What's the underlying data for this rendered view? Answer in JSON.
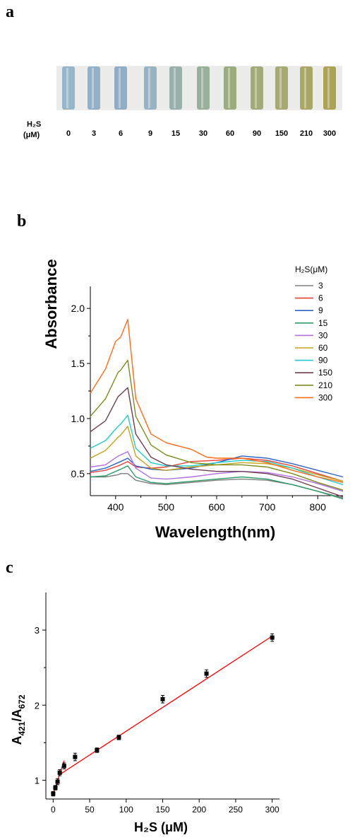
{
  "panels": {
    "a": "a",
    "b": "b",
    "c": "c"
  },
  "chart_data": [
    {
      "type": "photo-strip",
      "row_label_1": "H₂S",
      "row_label_2": "(μM)",
      "concentrations": [
        "0",
        "3",
        "6",
        "9",
        "15",
        "30",
        "60",
        "90",
        "150",
        "210",
        "300"
      ],
      "tube_colors": [
        "#8fb2c8",
        "#8daec4",
        "#8aaac2",
        "#92b0c0",
        "#92ada9",
        "#96ab98",
        "#99a978",
        "#9fa674",
        "#a3a669",
        "#a5a35e",
        "#a89f4c"
      ]
    },
    {
      "type": "line",
      "xlabel": "Wavelength(nm)",
      "ylabel": "Absorbance",
      "xlim": [
        350,
        850
      ],
      "ylim": [
        0.3,
        2.2
      ],
      "xticks": [
        "400",
        "500",
        "600",
        "700",
        "800"
      ],
      "yticks": [
        "0.5",
        "1.0",
        "1.5",
        "2.0"
      ],
      "legend_title": "H₂S(μM)",
      "legend_position": "top-right, outside plot",
      "series": [
        {
          "name": "3",
          "color": "#7f7f7f",
          "values": [
            [
              350,
              0.47
            ],
            [
              380,
              0.47
            ],
            [
              405,
              0.49
            ],
            [
              410,
              0.5
            ],
            [
              424,
              0.5
            ],
            [
              440,
              0.44
            ],
            [
              470,
              0.41
            ],
            [
              500,
              0.4
            ],
            [
              550,
              0.42
            ],
            [
              600,
              0.44
            ],
            [
              650,
              0.45
            ],
            [
              700,
              0.44
            ],
            [
              750,
              0.4
            ],
            [
              800,
              0.34
            ],
            [
              850,
              0.28
            ]
          ]
        },
        {
          "name": "6",
          "color": "#e8403a",
          "values": [
            [
              350,
              0.51
            ],
            [
              380,
              0.53
            ],
            [
              405,
              0.57
            ],
            [
              410,
              0.58
            ],
            [
              424,
              0.61
            ],
            [
              440,
              0.56
            ],
            [
              470,
              0.55
            ],
            [
              500,
              0.56
            ],
            [
              550,
              0.61
            ],
            [
              600,
              0.62
            ],
            [
              650,
              0.64
            ],
            [
              700,
              0.62
            ],
            [
              750,
              0.57
            ],
            [
              800,
              0.5
            ],
            [
              850,
              0.43
            ]
          ]
        },
        {
          "name": "9",
          "color": "#2d63c4",
          "values": [
            [
              350,
              0.52
            ],
            [
              380,
              0.55
            ],
            [
              405,
              0.6
            ],
            [
              410,
              0.61
            ],
            [
              424,
              0.64
            ],
            [
              440,
              0.57
            ],
            [
              470,
              0.54
            ],
            [
              500,
              0.53
            ],
            [
              550,
              0.55
            ],
            [
              600,
              0.6
            ],
            [
              650,
              0.66
            ],
            [
              700,
              0.64
            ],
            [
              750,
              0.59
            ],
            [
              800,
              0.53
            ],
            [
              850,
              0.47
            ]
          ]
        },
        {
          "name": "15",
          "color": "#2e9b6a",
          "values": [
            [
              350,
              0.47
            ],
            [
              380,
              0.48
            ],
            [
              405,
              0.53
            ],
            [
              410,
              0.54
            ],
            [
              424,
              0.57
            ],
            [
              440,
              0.47
            ],
            [
              470,
              0.42
            ],
            [
              500,
              0.41
            ],
            [
              550,
              0.43
            ],
            [
              600,
              0.45
            ],
            [
              650,
              0.47
            ],
            [
              700,
              0.45
            ],
            [
              750,
              0.4
            ],
            [
              800,
              0.34
            ],
            [
              850,
              0.27
            ]
          ]
        },
        {
          "name": "30",
          "color": "#b26fe0",
          "values": [
            [
              350,
              0.56
            ],
            [
              380,
              0.58
            ],
            [
              405,
              0.66
            ],
            [
              410,
              0.67
            ],
            [
              424,
              0.7
            ],
            [
              440,
              0.55
            ],
            [
              470,
              0.46
            ],
            [
              500,
              0.45
            ],
            [
              550,
              0.47
            ],
            [
              600,
              0.5
            ],
            [
              650,
              0.52
            ],
            [
              700,
              0.51
            ],
            [
              750,
              0.47
            ],
            [
              800,
              0.41
            ],
            [
              850,
              0.34
            ]
          ]
        },
        {
          "name": "60",
          "color": "#c4a21c",
          "values": [
            [
              350,
              0.64
            ],
            [
              380,
              0.71
            ],
            [
              405,
              0.83
            ],
            [
              410,
              0.85
            ],
            [
              424,
              0.93
            ],
            [
              440,
              0.66
            ],
            [
              470,
              0.55
            ],
            [
              500,
              0.53
            ],
            [
              550,
              0.56
            ],
            [
              600,
              0.58
            ],
            [
              650,
              0.6
            ],
            [
              700,
              0.59
            ],
            [
              750,
              0.55
            ],
            [
              800,
              0.49
            ],
            [
              850,
              0.43
            ]
          ]
        },
        {
          "name": "90",
          "color": "#22cbcb",
          "values": [
            [
              350,
              0.73
            ],
            [
              380,
              0.8
            ],
            [
              405,
              0.93
            ],
            [
              410,
              0.95
            ],
            [
              424,
              1.03
            ],
            [
              440,
              0.73
            ],
            [
              470,
              0.6
            ],
            [
              500,
              0.57
            ],
            [
              550,
              0.57
            ],
            [
              600,
              0.6
            ],
            [
              650,
              0.62
            ],
            [
              700,
              0.61
            ],
            [
              750,
              0.55
            ],
            [
              800,
              0.47
            ],
            [
              850,
              0.4
            ]
          ]
        },
        {
          "name": "150",
          "color": "#6d3d52",
          "values": [
            [
              350,
              0.88
            ],
            [
              380,
              0.98
            ],
            [
              405,
              1.2
            ],
            [
              410,
              1.22
            ],
            [
              424,
              1.28
            ],
            [
              440,
              0.86
            ],
            [
              470,
              0.65
            ],
            [
              500,
              0.58
            ],
            [
              550,
              0.54
            ],
            [
              600,
              0.52
            ],
            [
              650,
              0.52
            ],
            [
              700,
              0.5
            ],
            [
              750,
              0.45
            ],
            [
              800,
              0.37
            ],
            [
              850,
              0.29
            ]
          ]
        },
        {
          "name": "210",
          "color": "#7d8b1d",
          "values": [
            [
              350,
              1.02
            ],
            [
              380,
              1.18
            ],
            [
              405,
              1.42
            ],
            [
              410,
              1.44
            ],
            [
              424,
              1.53
            ],
            [
              440,
              1.02
            ],
            [
              470,
              0.76
            ],
            [
              500,
              0.67
            ],
            [
              550,
              0.6
            ],
            [
              600,
              0.58
            ],
            [
              650,
              0.58
            ],
            [
              700,
              0.56
            ],
            [
              750,
              0.5
            ],
            [
              800,
              0.42
            ],
            [
              850,
              0.35
            ]
          ]
        },
        {
          "name": "300",
          "color": "#ff6a18",
          "values": [
            [
              350,
              1.23
            ],
            [
              380,
              1.45
            ],
            [
              400,
              1.7
            ],
            [
              410,
              1.74
            ],
            [
              424,
              1.9
            ],
            [
              440,
              1.18
            ],
            [
              470,
              0.86
            ],
            [
              500,
              0.78
            ],
            [
              550,
              0.72
            ],
            [
              580,
              0.65
            ],
            [
              600,
              0.64
            ],
            [
              650,
              0.64
            ],
            [
              700,
              0.6
            ],
            [
              750,
              0.53
            ],
            [
              800,
              0.47
            ],
            [
              850,
              0.42
            ]
          ]
        }
      ]
    },
    {
      "type": "scatter",
      "xlabel": "H₂S (μM)",
      "ylabel_main": "A",
      "ylabel_sub1": "421",
      "ylabel_mid": "/A",
      "ylabel_sub2": "672",
      "xlim": [
        -10,
        310
      ],
      "ylim": [
        0.75,
        3.5
      ],
      "xticks": [
        "0",
        "50",
        "100",
        "150",
        "200",
        "250",
        "300"
      ],
      "yticks": [
        "1",
        "2",
        "3"
      ],
      "points": [
        {
          "x": 0,
          "y": 0.82,
          "err": 0.03
        },
        {
          "x": 3,
          "y": 0.9,
          "err": 0.03
        },
        {
          "x": 6,
          "y": 0.98,
          "err": 0.04
        },
        {
          "x": 9,
          "y": 1.1,
          "err": 0.04
        },
        {
          "x": 15,
          "y": 1.19,
          "err": 0.04
        },
        {
          "x": 30,
          "y": 1.31,
          "err": 0.05
        },
        {
          "x": 60,
          "y": 1.4,
          "err": 0.03
        },
        {
          "x": 90,
          "y": 1.57,
          "err": 0.03
        },
        {
          "x": 150,
          "y": 2.08,
          "err": 0.05
        },
        {
          "x": 210,
          "y": 2.42,
          "err": 0.05
        },
        {
          "x": 300,
          "y": 2.9,
          "err": 0.05
        }
      ],
      "fits": [
        {
          "color": "#ff0000",
          "from": [
            0,
            0.82
          ],
          "to": [
            15,
            1.26
          ]
        },
        {
          "color": "#ff0000",
          "from": [
            8,
            1.07
          ],
          "to": [
            300,
            2.92
          ]
        }
      ]
    }
  ]
}
